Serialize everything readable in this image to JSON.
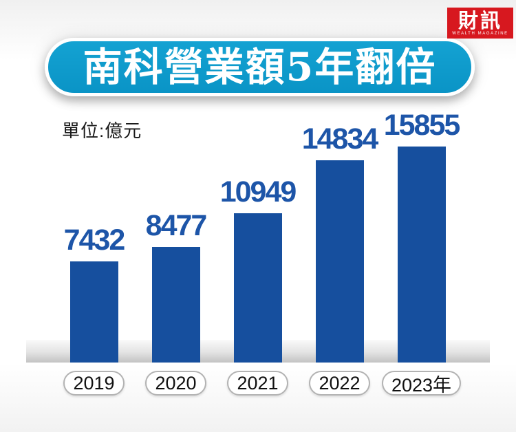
{
  "logo": {
    "title": "財訊",
    "subtitle": "WEALTH MAGAZINE",
    "bg_color": "#d7181f"
  },
  "header": {
    "title": "南科營業額5年翻倍",
    "pill_color_top": "#14a2d2",
    "pill_color_bottom": "#0a94c6"
  },
  "unit_label": "單位:億元",
  "chart_data": {
    "type": "bar",
    "title": "南科營業額5年翻倍",
    "unit": "億元",
    "categories": [
      "2019",
      "2020",
      "2021",
      "2022",
      "2023年"
    ],
    "values": [
      7432,
      8477,
      10949,
      14834,
      15855
    ],
    "ylim": [
      0,
      16000
    ],
    "grid": false,
    "legend": false,
    "bar_color": "#164f9e",
    "value_label_color": "#1d55a8",
    "axis_label_color": "#111111"
  }
}
